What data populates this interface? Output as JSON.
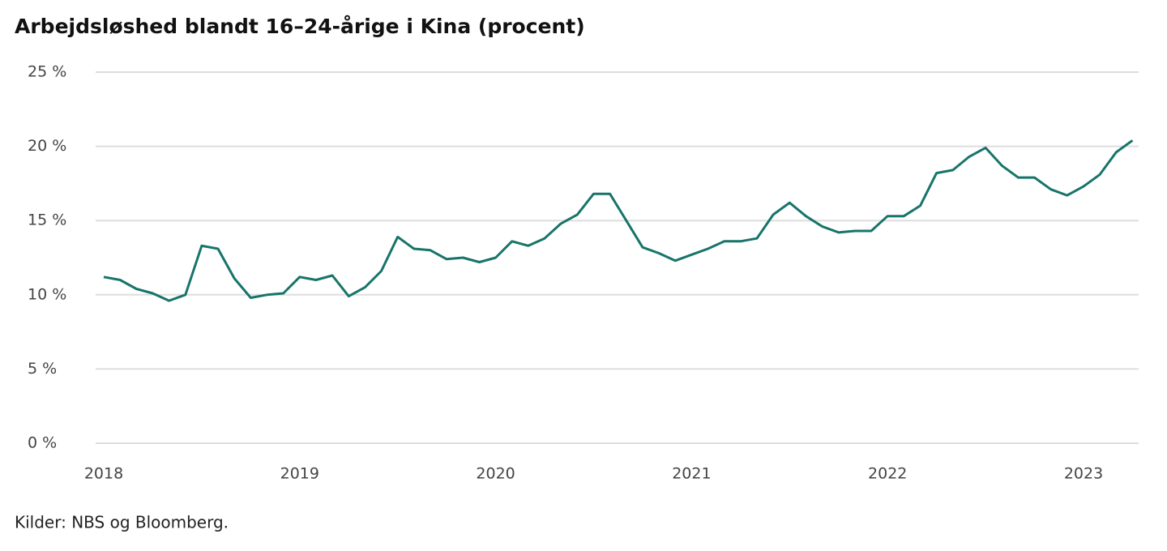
{
  "chart_data": {
    "type": "line",
    "title": "Arbejdsløshed blandt 16–24-årige i Kina (procent)",
    "source": "Kilder: NBS og Bloomberg.",
    "categories": [
      "2018",
      null,
      null,
      null,
      null,
      null,
      null,
      null,
      null,
      null,
      null,
      null,
      "2019",
      null,
      null,
      null,
      null,
      null,
      null,
      null,
      null,
      null,
      null,
      null,
      "2020",
      null,
      null,
      null,
      null,
      null,
      null,
      null,
      null,
      null,
      null,
      null,
      "2021",
      null,
      null,
      null,
      null,
      null,
      null,
      null,
      null,
      null,
      null,
      null,
      "2022",
      null,
      null,
      null,
      null,
      null,
      null,
      null,
      null,
      null,
      null,
      null,
      "2023",
      null,
      null,
      null
    ],
    "series": [
      {
        "color": "#17746a",
        "values": [
          11.2,
          11.0,
          10.4,
          10.1,
          9.6,
          10.0,
          13.3,
          13.1,
          11.1,
          9.8,
          10.0,
          10.1,
          11.2,
          11.0,
          11.3,
          9.9,
          10.5,
          11.6,
          13.9,
          13.1,
          13.0,
          12.4,
          12.5,
          12.2,
          12.5,
          13.6,
          13.3,
          13.8,
          14.8,
          15.4,
          16.8,
          16.8,
          15.0,
          13.2,
          12.8,
          12.3,
          12.7,
          13.1,
          13.6,
          13.6,
          13.8,
          15.4,
          16.2,
          15.3,
          14.6,
          14.2,
          14.3,
          14.3,
          15.3,
          15.3,
          16.0,
          18.2,
          18.4,
          19.3,
          19.9,
          18.7,
          17.9,
          17.9,
          17.1,
          16.7,
          17.3,
          18.1,
          19.6,
          20.4
        ]
      }
    ],
    "ylim": [
      0,
      25
    ],
    "yticks": [
      {
        "value": 0,
        "label": "0 %"
      },
      {
        "value": 5,
        "label": "5 %"
      },
      {
        "value": 10,
        "label": "10 %"
      },
      {
        "value": 15,
        "label": "15 %"
      },
      {
        "value": 20,
        "label": "20 %"
      },
      {
        "value": 25,
        "label": "25 %"
      }
    ],
    "grid": true
  }
}
